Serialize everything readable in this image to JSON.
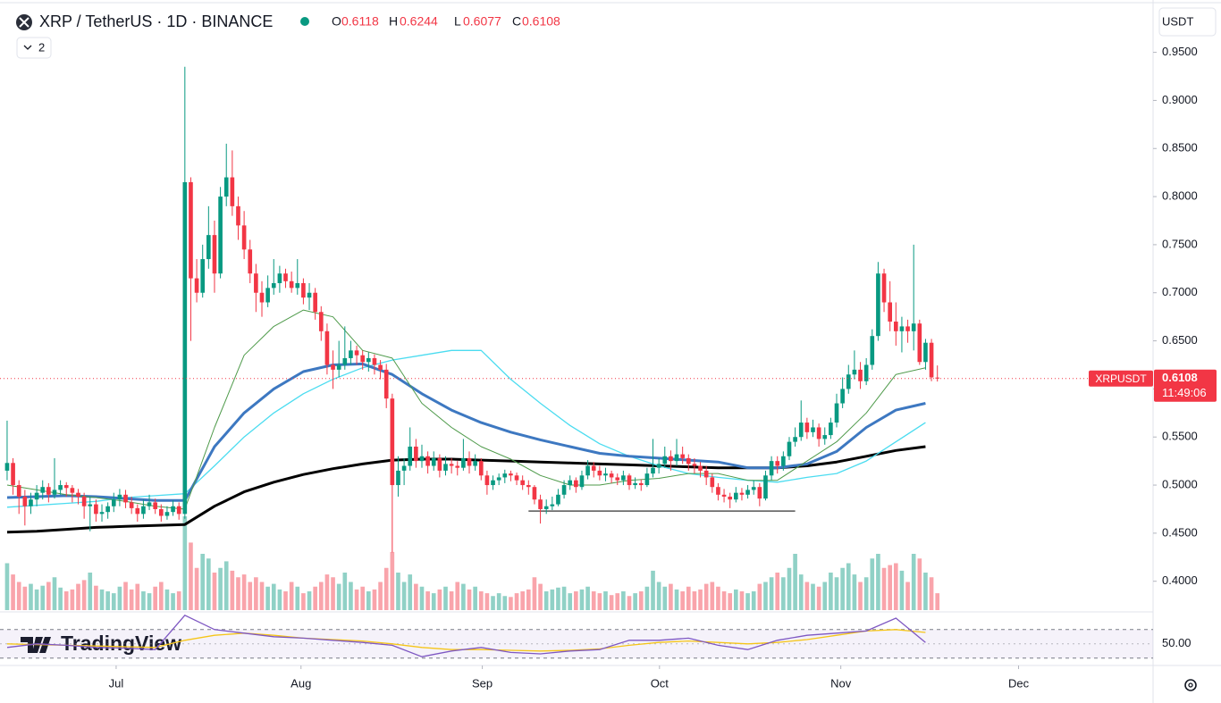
{
  "header": {
    "symbol": "XRP / TetherUS · 1D · BINANCE",
    "ohlc_labels": [
      "O",
      "H",
      "L",
      "C"
    ],
    "indicator_count": 2,
    "currency": "USDT",
    "brand": "TradingView"
  },
  "chart_data": {
    "type": "candlestick",
    "symbol_tag": "XRPUSDT",
    "countdown": "11:49:06",
    "colors": {
      "up": "#089981",
      "down": "#f23645"
    },
    "ylim": [
      0.37,
      0.997
    ],
    "yticks": [
      {
        "value": 0.4,
        "label": "0.4000"
      },
      {
        "value": 0.45,
        "label": "0.4500"
      },
      {
        "value": 0.5,
        "label": "0.5000"
      },
      {
        "value": 0.55,
        "label": "0.5500"
      },
      {
        "value": 0.6,
        "label": "0.6000"
      },
      {
        "value": 0.65,
        "label": "0.6500"
      },
      {
        "value": 0.7,
        "label": "0.7000"
      },
      {
        "value": 0.75,
        "label": "0.7500"
      },
      {
        "value": 0.8,
        "label": "0.8000"
      },
      {
        "value": 0.85,
        "label": "0.8500"
      },
      {
        "value": 0.9,
        "label": "0.9000"
      },
      {
        "value": 0.95,
        "label": "0.9500"
      }
    ],
    "xlim": [
      -1.2,
      193.4
    ],
    "xticks": [
      {
        "value": 18.4,
        "label": "Jul"
      },
      {
        "value": 49.6,
        "label": "Aug"
      },
      {
        "value": 80.2,
        "label": "Sep"
      },
      {
        "value": 110.1,
        "label": "Oct"
      },
      {
        "value": 140.7,
        "label": "Nov"
      },
      {
        "value": 170.7,
        "label": "Dec"
      }
    ],
    "ohlc": [
      [
        0.515,
        0.567,
        0.505,
        0.523
      ],
      [
        0.523,
        0.528,
        0.49,
        0.5
      ],
      [
        0.5,
        0.505,
        0.47,
        0.488
      ],
      [
        0.488,
        0.495,
        0.458,
        0.478
      ],
      [
        0.478,
        0.492,
        0.47,
        0.485
      ],
      [
        0.485,
        0.5,
        0.478,
        0.492
      ],
      [
        0.492,
        0.505,
        0.485,
        0.498
      ],
      [
        0.498,
        0.502,
        0.482,
        0.49
      ],
      [
        0.49,
        0.528,
        0.486,
        0.495
      ],
      [
        0.495,
        0.505,
        0.49,
        0.5
      ],
      [
        0.5,
        0.503,
        0.488,
        0.497
      ],
      [
        0.497,
        0.5,
        0.482,
        0.492
      ],
      [
        0.492,
        0.496,
        0.48,
        0.488
      ],
      [
        0.488,
        0.492,
        0.465,
        0.478
      ],
      [
        0.478,
        0.488,
        0.452,
        0.48
      ],
      [
        0.48,
        0.485,
        0.462,
        0.47
      ],
      [
        0.47,
        0.48,
        0.462,
        0.472
      ],
      [
        0.472,
        0.482,
        0.465,
        0.478
      ],
      [
        0.478,
        0.492,
        0.472,
        0.485
      ],
      [
        0.485,
        0.496,
        0.478,
        0.49
      ],
      [
        0.49,
        0.495,
        0.476,
        0.482
      ],
      [
        0.482,
        0.488,
        0.47,
        0.476
      ],
      [
        0.476,
        0.48,
        0.462,
        0.47
      ],
      [
        0.47,
        0.485,
        0.465,
        0.478
      ],
      [
        0.478,
        0.49,
        0.474,
        0.482
      ],
      [
        0.482,
        0.486,
        0.47,
        0.475
      ],
      [
        0.475,
        0.48,
        0.462,
        0.468
      ],
      [
        0.468,
        0.478,
        0.464,
        0.472
      ],
      [
        0.472,
        0.484,
        0.468,
        0.478
      ],
      [
        0.478,
        0.482,
        0.464,
        0.47
      ],
      [
        0.47,
        0.935,
        0.465,
        0.815
      ],
      [
        0.815,
        0.82,
        0.65,
        0.715
      ],
      [
        0.715,
        0.735,
        0.69,
        0.7
      ],
      [
        0.7,
        0.75,
        0.695,
        0.735
      ],
      [
        0.735,
        0.79,
        0.725,
        0.76
      ],
      [
        0.76,
        0.775,
        0.7,
        0.72
      ],
      [
        0.72,
        0.81,
        0.715,
        0.8
      ],
      [
        0.8,
        0.855,
        0.79,
        0.82
      ],
      [
        0.82,
        0.848,
        0.78,
        0.79
      ],
      [
        0.79,
        0.8,
        0.755,
        0.77
      ],
      [
        0.77,
        0.785,
        0.735,
        0.745
      ],
      [
        0.745,
        0.755,
        0.71,
        0.72
      ],
      [
        0.72,
        0.73,
        0.68,
        0.7
      ],
      [
        0.7,
        0.712,
        0.675,
        0.69
      ],
      [
        0.69,
        0.718,
        0.685,
        0.705
      ],
      [
        0.705,
        0.735,
        0.698,
        0.71
      ],
      [
        0.71,
        0.728,
        0.7,
        0.72
      ],
      [
        0.72,
        0.725,
        0.705,
        0.712
      ],
      [
        0.712,
        0.722,
        0.7,
        0.705
      ],
      [
        0.705,
        0.735,
        0.698,
        0.71
      ],
      [
        0.71,
        0.715,
        0.688,
        0.695
      ],
      [
        0.695,
        0.71,
        0.682,
        0.7
      ],
      [
        0.7,
        0.705,
        0.672,
        0.68
      ],
      [
        0.68,
        0.686,
        0.65,
        0.66
      ],
      [
        0.66,
        0.668,
        0.615,
        0.625
      ],
      [
        0.625,
        0.64,
        0.6,
        0.62
      ],
      [
        0.62,
        0.65,
        0.612,
        0.625
      ],
      [
        0.625,
        0.665,
        0.62,
        0.632
      ],
      [
        0.632,
        0.65,
        0.625,
        0.64
      ],
      [
        0.64,
        0.645,
        0.625,
        0.635
      ],
      [
        0.635,
        0.64,
        0.62,
        0.628
      ],
      [
        0.628,
        0.638,
        0.618,
        0.632
      ],
      [
        0.632,
        0.636,
        0.615,
        0.625
      ],
      [
        0.625,
        0.63,
        0.61,
        0.62
      ],
      [
        0.62,
        0.626,
        0.58,
        0.59
      ],
      [
        0.59,
        0.595,
        0.43,
        0.5
      ],
      [
        0.5,
        0.53,
        0.488,
        0.515
      ],
      [
        0.515,
        0.528,
        0.5,
        0.52
      ],
      [
        0.52,
        0.56,
        0.515,
        0.54
      ],
      [
        0.54,
        0.548,
        0.518,
        0.525
      ],
      [
        0.525,
        0.542,
        0.518,
        0.53
      ],
      [
        0.53,
        0.535,
        0.512,
        0.52
      ],
      [
        0.52,
        0.535,
        0.515,
        0.528
      ],
      [
        0.528,
        0.532,
        0.508,
        0.515
      ],
      [
        0.515,
        0.53,
        0.51,
        0.522
      ],
      [
        0.522,
        0.528,
        0.512,
        0.52
      ],
      [
        0.52,
        0.525,
        0.51,
        0.518
      ],
      [
        0.518,
        0.548,
        0.515,
        0.528
      ],
      [
        0.528,
        0.535,
        0.512,
        0.52
      ],
      [
        0.52,
        0.532,
        0.515,
        0.525
      ],
      [
        0.525,
        0.528,
        0.505,
        0.51
      ],
      [
        0.51,
        0.515,
        0.49,
        0.5
      ],
      [
        0.5,
        0.51,
        0.495,
        0.505
      ],
      [
        0.505,
        0.512,
        0.5,
        0.508
      ],
      [
        0.508,
        0.516,
        0.502,
        0.512
      ],
      [
        0.512,
        0.515,
        0.504,
        0.51
      ],
      [
        0.51,
        0.513,
        0.5,
        0.505
      ],
      [
        0.505,
        0.51,
        0.495,
        0.5
      ],
      [
        0.5,
        0.505,
        0.49,
        0.498
      ],
      [
        0.498,
        0.5,
        0.48,
        0.485
      ],
      [
        0.485,
        0.49,
        0.46,
        0.475
      ],
      [
        0.475,
        0.485,
        0.47,
        0.478
      ],
      [
        0.478,
        0.488,
        0.474,
        0.48
      ],
      [
        0.48,
        0.496,
        0.478,
        0.49
      ],
      [
        0.49,
        0.505,
        0.486,
        0.5
      ],
      [
        0.5,
        0.51,
        0.495,
        0.505
      ],
      [
        0.505,
        0.508,
        0.492,
        0.498
      ],
      [
        0.498,
        0.515,
        0.495,
        0.51
      ],
      [
        0.51,
        0.526,
        0.506,
        0.52
      ],
      [
        0.52,
        0.524,
        0.508,
        0.515
      ],
      [
        0.515,
        0.52,
        0.505,
        0.51
      ],
      [
        0.51,
        0.518,
        0.504,
        0.512
      ],
      [
        0.512,
        0.515,
        0.502,
        0.508
      ],
      [
        0.508,
        0.512,
        0.5,
        0.505
      ],
      [
        0.505,
        0.515,
        0.5,
        0.51
      ],
      [
        0.51,
        0.512,
        0.495,
        0.5
      ],
      [
        0.5,
        0.508,
        0.496,
        0.502
      ],
      [
        0.502,
        0.506,
        0.494,
        0.5
      ],
      [
        0.5,
        0.518,
        0.498,
        0.512
      ],
      [
        0.512,
        0.548,
        0.508,
        0.518
      ],
      [
        0.518,
        0.528,
        0.512,
        0.522
      ],
      [
        0.522,
        0.54,
        0.518,
        0.53
      ],
      [
        0.53,
        0.536,
        0.515,
        0.525
      ],
      [
        0.525,
        0.548,
        0.52,
        0.532
      ],
      [
        0.532,
        0.54,
        0.522,
        0.528
      ],
      [
        0.528,
        0.532,
        0.515,
        0.522
      ],
      [
        0.522,
        0.528,
        0.512,
        0.52
      ],
      [
        0.52,
        0.524,
        0.508,
        0.515
      ],
      [
        0.515,
        0.52,
        0.5,
        0.508
      ],
      [
        0.508,
        0.512,
        0.492,
        0.498
      ],
      [
        0.498,
        0.502,
        0.484,
        0.49
      ],
      [
        0.49,
        0.496,
        0.482,
        0.488
      ],
      [
        0.488,
        0.492,
        0.476,
        0.485
      ],
      [
        0.485,
        0.498,
        0.482,
        0.492
      ],
      [
        0.492,
        0.497,
        0.484,
        0.49
      ],
      [
        0.49,
        0.5,
        0.486,
        0.495
      ],
      [
        0.495,
        0.505,
        0.49,
        0.498
      ],
      [
        0.498,
        0.502,
        0.478,
        0.486
      ],
      [
        0.486,
        0.515,
        0.484,
        0.51
      ],
      [
        0.51,
        0.53,
        0.505,
        0.525
      ],
      [
        0.525,
        0.53,
        0.512,
        0.52
      ],
      [
        0.52,
        0.535,
        0.515,
        0.53
      ],
      [
        0.53,
        0.55,
        0.526,
        0.545
      ],
      [
        0.545,
        0.56,
        0.54,
        0.55
      ],
      [
        0.55,
        0.588,
        0.546,
        0.565
      ],
      [
        0.565,
        0.57,
        0.548,
        0.555
      ],
      [
        0.555,
        0.568,
        0.55,
        0.56
      ],
      [
        0.56,
        0.564,
        0.54,
        0.548
      ],
      [
        0.548,
        0.56,
        0.542,
        0.552
      ],
      [
        0.552,
        0.57,
        0.548,
        0.565
      ],
      [
        0.565,
        0.595,
        0.56,
        0.585
      ],
      [
        0.585,
        0.612,
        0.58,
        0.6
      ],
      [
        0.6,
        0.625,
        0.595,
        0.615
      ],
      [
        0.615,
        0.64,
        0.61,
        0.62
      ],
      [
        0.62,
        0.628,
        0.6,
        0.608
      ],
      [
        0.608,
        0.632,
        0.604,
        0.625
      ],
      [
        0.625,
        0.662,
        0.62,
        0.655
      ],
      [
        0.655,
        0.732,
        0.65,
        0.72
      ],
      [
        0.72,
        0.725,
        0.68,
        0.69
      ],
      [
        0.69,
        0.712,
        0.66,
        0.67
      ],
      [
        0.67,
        0.69,
        0.645,
        0.66
      ],
      [
        0.66,
        0.675,
        0.638,
        0.665
      ],
      [
        0.665,
        0.672,
        0.648,
        0.66
      ],
      [
        0.66,
        0.75,
        0.64,
        0.668
      ],
      [
        0.668,
        0.672,
        0.625,
        0.628
      ],
      [
        0.628,
        0.652,
        0.62,
        0.648
      ],
      [
        0.648,
        0.652,
        0.608,
        0.612
      ],
      [
        0.6118,
        0.6244,
        0.6077,
        0.6108
      ]
    ],
    "volume": [
      50,
      38,
      30,
      25,
      28,
      22,
      26,
      30,
      35,
      24,
      20,
      22,
      28,
      32,
      40,
      26,
      22,
      20,
      18,
      25,
      30,
      22,
      28,
      20,
      18,
      25,
      30,
      22,
      18,
      20,
      100,
      72,
      45,
      60,
      55,
      40,
      45,
      52,
      42,
      35,
      38,
      30,
      35,
      30,
      25,
      28,
      22,
      20,
      30,
      25,
      18,
      20,
      25,
      30,
      38,
      35,
      28,
      40,
      30,
      22,
      25,
      20,
      22,
      30,
      45,
      62,
      40,
      30,
      38,
      28,
      25,
      20,
      18,
      22,
      25,
      20,
      30,
      28,
      22,
      25,
      20,
      18,
      15,
      18,
      15,
      14,
      18,
      20,
      22,
      35,
      28,
      20,
      22,
      24,
      25,
      18,
      20,
      22,
      25,
      20,
      18,
      20,
      16,
      18,
      20,
      15,
      18,
      20,
      25,
      42,
      30,
      25,
      28,
      22,
      20,
      25,
      20,
      22,
      28,
      30,
      25,
      20,
      18,
      22,
      20,
      18,
      20,
      28,
      30,
      35,
      40,
      35,
      45,
      60,
      38,
      30,
      28,
      25,
      30,
      40,
      35,
      45,
      50,
      38,
      30,
      35,
      55,
      60,
      45,
      48,
      50,
      42,
      30,
      60,
      55,
      40,
      35,
      18
    ],
    "moving_averages": [
      {
        "color": "#000000",
        "width": 3,
        "values": [
          0.451,
          0.452,
          0.454,
          0.456,
          0.457,
          0.458,
          0.459,
          0.478,
          0.493,
          0.503,
          0.511,
          0.517,
          0.522,
          0.526,
          0.527,
          0.527,
          0.526,
          0.525,
          0.524,
          0.523,
          0.522,
          0.521,
          0.52,
          0.519,
          0.518,
          0.518,
          0.518,
          0.52,
          0.524,
          0.53,
          0.536,
          0.54
        ]
      },
      {
        "color": "#4bdcf0",
        "width": 1.3,
        "values": [
          0.477,
          0.479,
          0.481,
          0.483,
          0.487,
          0.489,
          0.491,
          0.52,
          0.55,
          0.575,
          0.595,
          0.61,
          0.622,
          0.63,
          0.635,
          0.64,
          0.64,
          0.61,
          0.585,
          0.562,
          0.543,
          0.53,
          0.52,
          0.512,
          0.508,
          0.505,
          0.503,
          0.508,
          0.512,
          0.525,
          0.545,
          0.565
        ]
      },
      {
        "color": "#3d78c1",
        "width": 3,
        "values": [
          0.487,
          0.488,
          0.489,
          0.488,
          0.486,
          0.484,
          0.484,
          0.54,
          0.575,
          0.6,
          0.618,
          0.625,
          0.626,
          0.615,
          0.595,
          0.578,
          0.565,
          0.555,
          0.547,
          0.54,
          0.533,
          0.53,
          0.528,
          0.526,
          0.524,
          0.518,
          0.518,
          0.522,
          0.535,
          0.56,
          0.578,
          0.585
        ]
      },
      {
        "color": "#4e9a4a",
        "width": 1,
        "values": [
          0.5,
          0.495,
          0.49,
          0.487,
          0.483,
          0.478,
          0.475,
          0.56,
          0.635,
          0.665,
          0.682,
          0.675,
          0.64,
          0.632,
          0.585,
          0.56,
          0.54,
          0.527,
          0.51,
          0.5,
          0.5,
          0.505,
          0.507,
          0.512,
          0.512,
          0.505,
          0.505,
          0.525,
          0.545,
          0.575,
          0.615,
          0.622
        ]
      }
    ],
    "support_line": {
      "value": 0.473,
      "from": 88,
      "to": 133
    },
    "rsi": {
      "values": [
        45,
        50,
        48,
        45,
        44,
        42,
        90,
        70,
        65,
        60,
        58,
        55,
        52,
        48,
        32,
        40,
        45,
        38,
        36,
        40,
        42,
        55,
        55,
        58,
        48,
        42,
        55,
        62,
        65,
        68,
        86,
        52
      ],
      "ma_values": [
        50,
        49,
        48,
        47,
        46,
        45,
        55,
        62,
        65,
        62,
        58,
        56,
        54,
        50,
        45,
        42,
        42,
        41,
        40,
        41,
        43,
        48,
        52,
        54,
        52,
        50,
        52,
        56,
        62,
        68,
        70,
        66
      ],
      "color": "#7e57c2",
      "ma_color": "#f5c518",
      "ylim": [
        26,
        91
      ],
      "bands": [
        30,
        70
      ],
      "yticks": [
        {
          "value": 50,
          "label": "50.00"
        }
      ]
    }
  }
}
